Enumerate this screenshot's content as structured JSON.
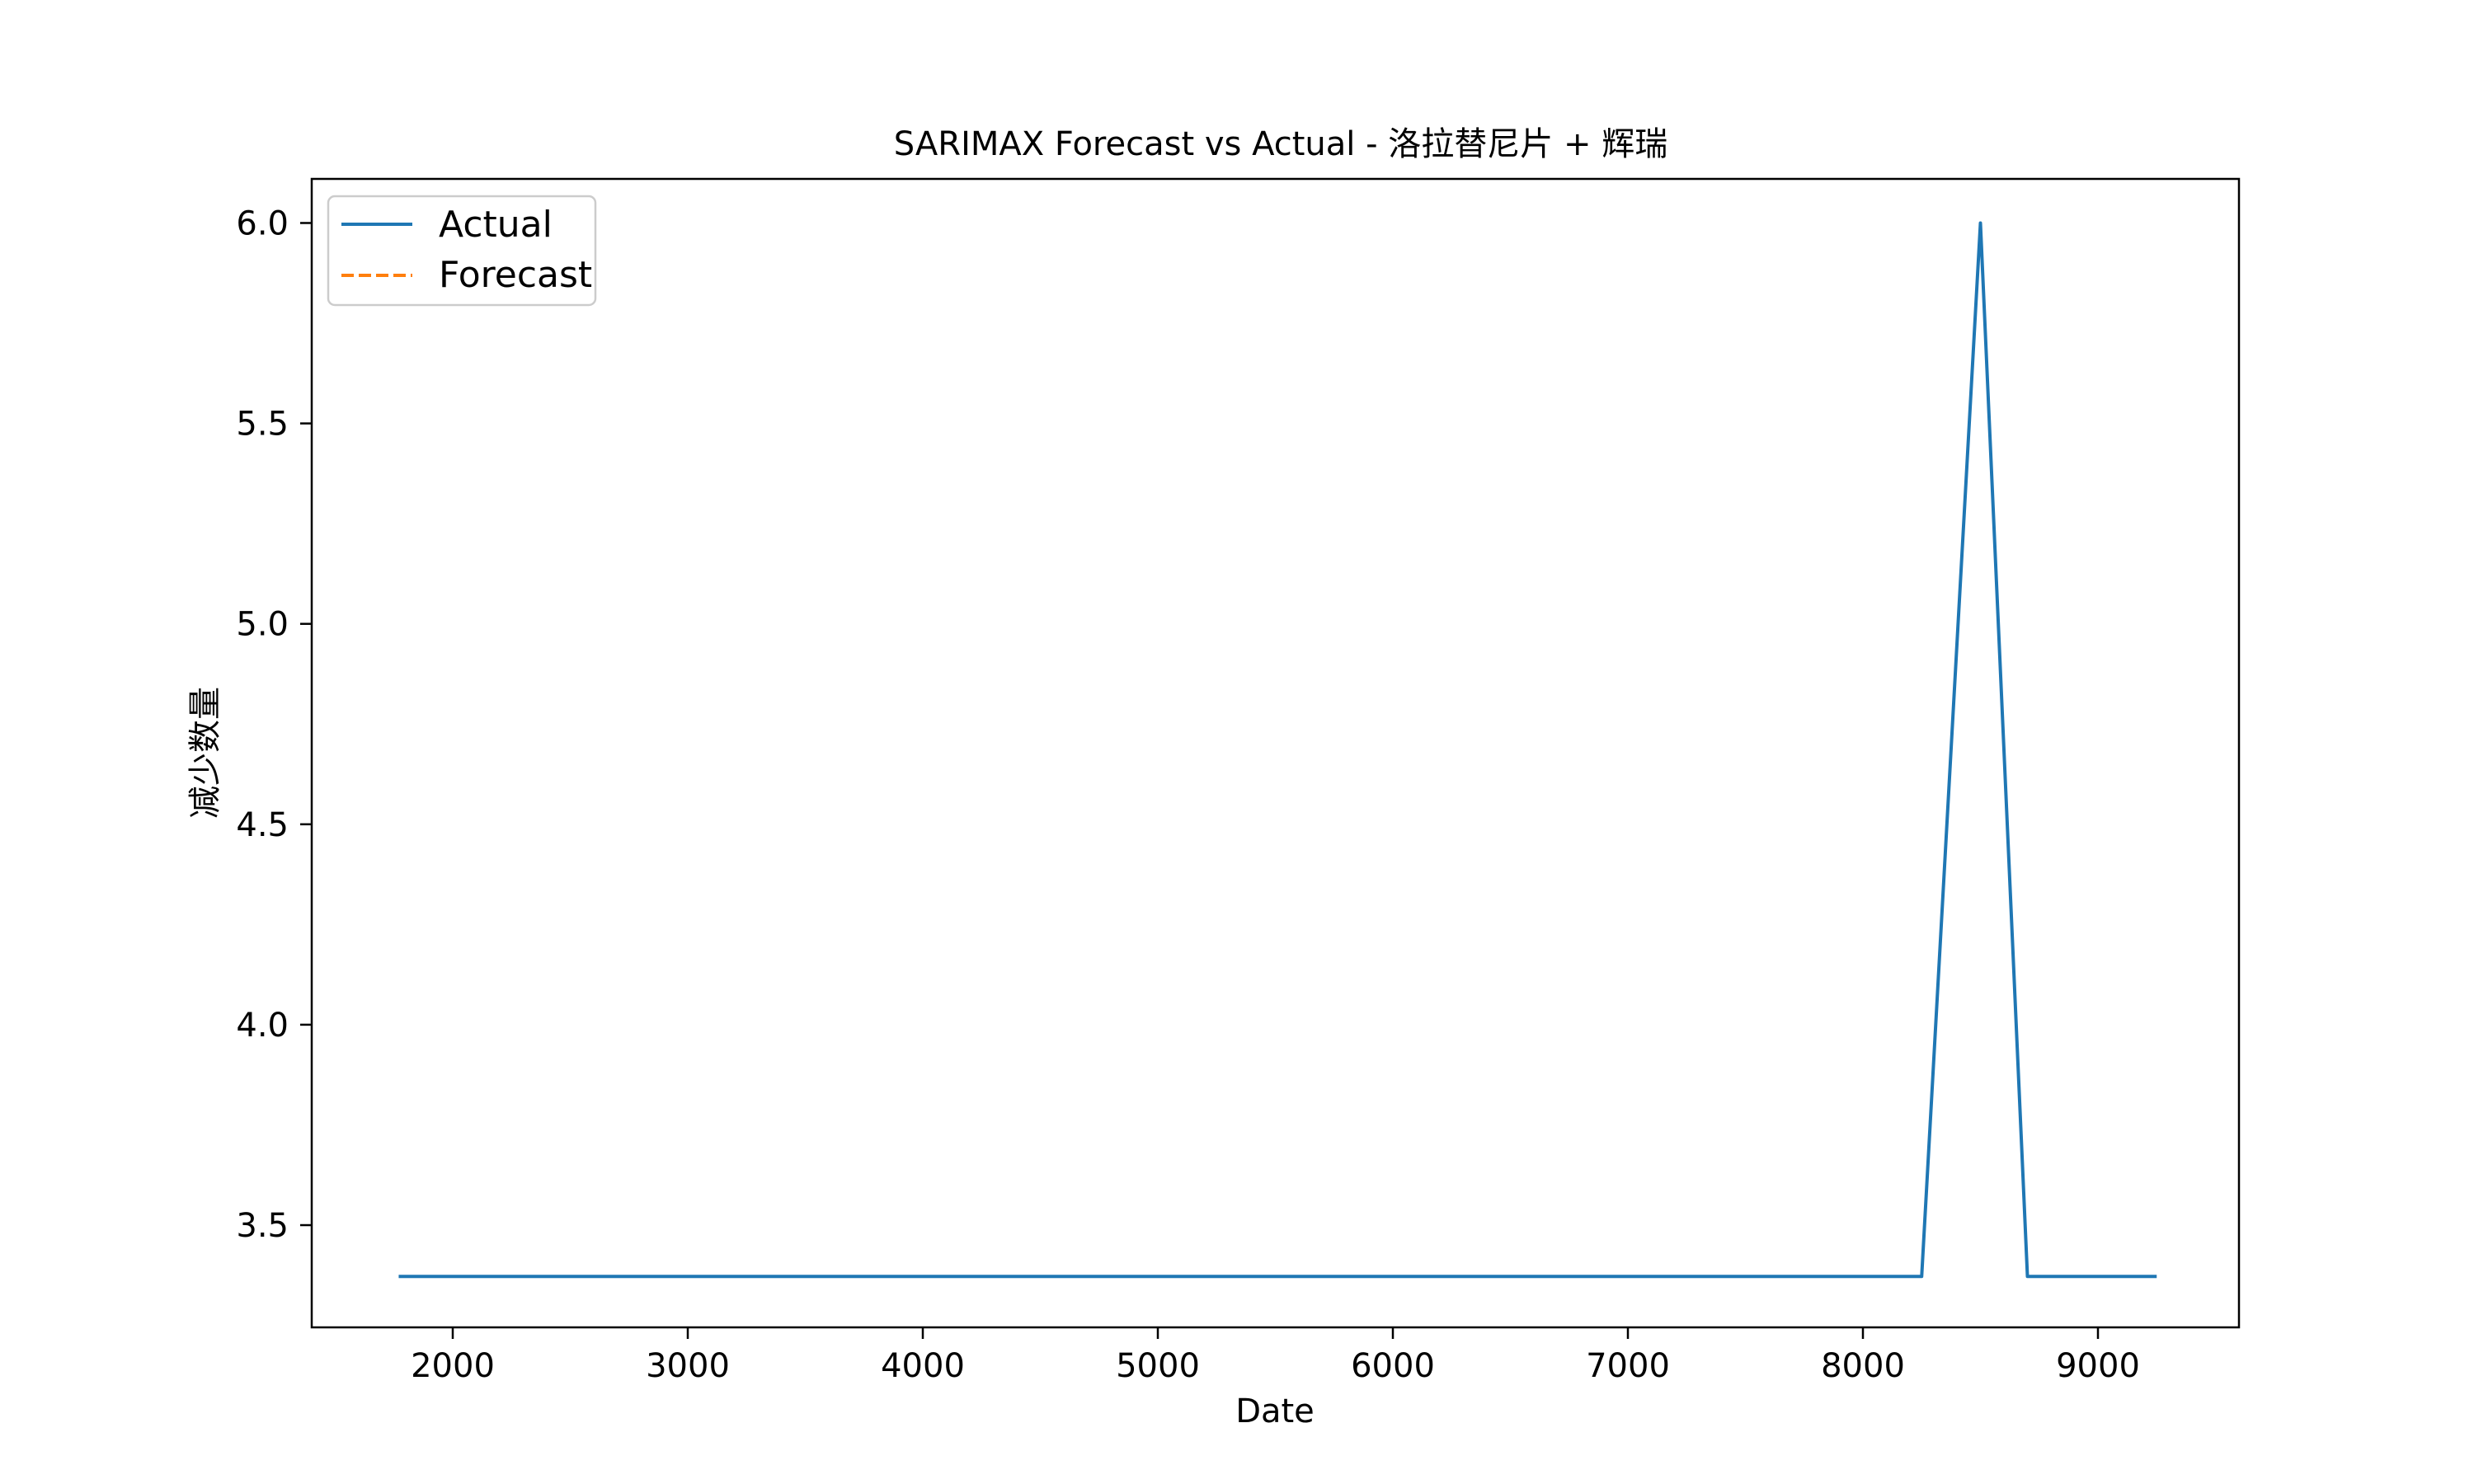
{
  "chart_data": {
    "type": "line",
    "title": "SARIMAX Forecast vs Actual - 洛拉替尼片 + 辉瑞",
    "xlabel": "Date",
    "ylabel": "减少数量",
    "xlim": [
      1400,
      9600
    ],
    "ylim": [
      3.245,
      6.11
    ],
    "xticks": [
      2000,
      3000,
      4000,
      5000,
      6000,
      7000,
      8000,
      9000
    ],
    "yticks": [
      3.5,
      4.0,
      4.5,
      5.0,
      5.5,
      6.0
    ],
    "grid": false,
    "legend": "upper-left",
    "series": [
      {
        "name": "Actual",
        "color": "#1f77b4",
        "style": "solid",
        "x": [
          1770,
          8250,
          8500,
          8700,
          9250
        ],
        "y": [
          3.372,
          3.372,
          6.0,
          3.372,
          3.372
        ]
      },
      {
        "name": "Forecast",
        "color": "#ff7f0e",
        "style": "dashed",
        "x": [],
        "y": []
      }
    ]
  }
}
